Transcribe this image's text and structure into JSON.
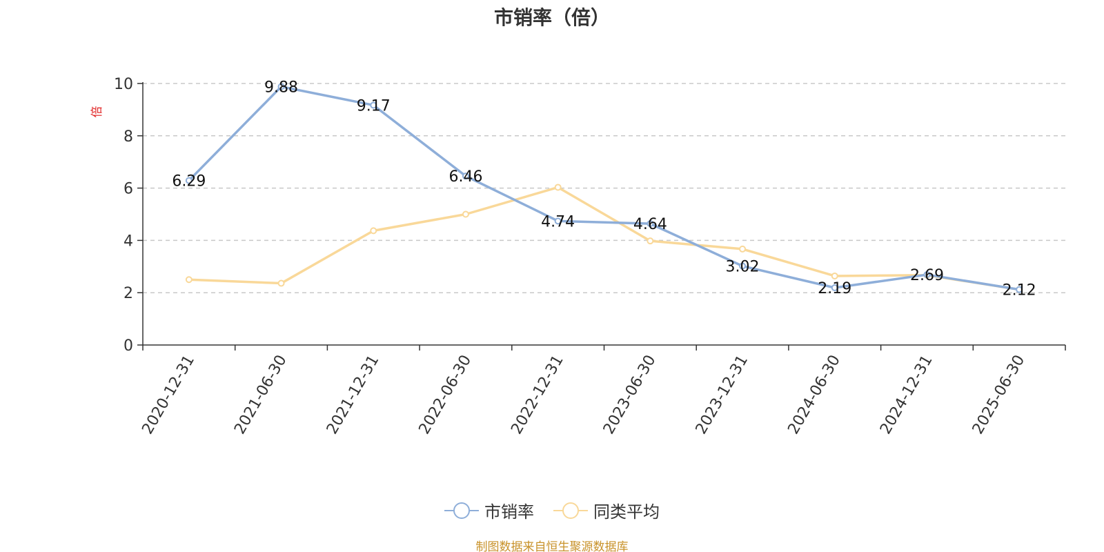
{
  "source_note": "制图数据来自恒生聚源数据库",
  "chart_data": {
    "type": "line",
    "title": "市销率（倍）",
    "ylabel": "倍",
    "xlabel": "",
    "categories": [
      "2020-12-31",
      "2021-06-30",
      "2021-12-31",
      "2022-06-30",
      "2022-12-31",
      "2023-06-30",
      "2023-12-31",
      "2024-06-30",
      "2024-12-31",
      "2025-06-30"
    ],
    "ylim": [
      0,
      10
    ],
    "yticks": [
      0,
      2,
      4,
      6,
      8,
      10
    ],
    "grid": "horizontal-dashed",
    "legend_position": "bottom-center",
    "series": [
      {
        "name": "市销率",
        "color": "#8eaed9",
        "values": [
          6.29,
          9.88,
          9.17,
          6.46,
          4.74,
          4.64,
          3.02,
          2.19,
          2.69,
          2.12
        ],
        "labels": [
          "6.29",
          "9.88",
          "9.17",
          "6.46",
          "4.74",
          "4.64",
          "3.02",
          "2.19",
          "2.69",
          "2.12"
        ],
        "show_labels": true
      },
      {
        "name": "同类平均",
        "color": "#f9d899",
        "values": [
          2.5,
          2.36,
          4.37,
          5.0,
          6.03,
          3.98,
          3.67,
          2.64,
          2.67,
          2.12
        ],
        "show_labels": false
      }
    ]
  }
}
